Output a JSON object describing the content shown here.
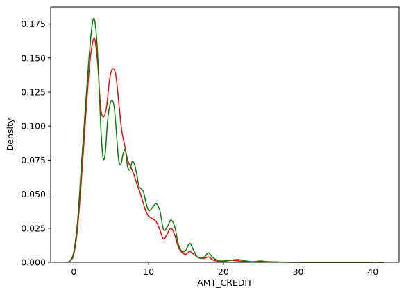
{
  "chart_data": {
    "type": "line",
    "title": "",
    "xlabel": "AMT_CREDIT",
    "ylabel": "Density",
    "xlim": [
      -3.1,
      43.5
    ],
    "ylim": [
      0,
      0.1875
    ],
    "x_ticks": [
      0,
      10,
      20,
      30,
      40
    ],
    "y_ticks": [
      0.0,
      0.025,
      0.05,
      0.075,
      0.1,
      0.125,
      0.15,
      0.175
    ],
    "x_tick_labels": [
      "0",
      "10",
      "20",
      "30",
      "40"
    ],
    "y_tick_labels": [
      "0.000",
      "0.025",
      "0.050",
      "0.075",
      "0.100",
      "0.125",
      "0.150",
      "0.175"
    ],
    "grid": false,
    "legend": "none",
    "series": [
      {
        "color": "#ff0000",
        "x": [
          -1.0,
          -0.5,
          0.0,
          0.5,
          1.0,
          1.5,
          2.0,
          2.4,
          2.8,
          3.2,
          3.6,
          4.0,
          4.4,
          4.8,
          5.2,
          5.6,
          6.0,
          6.4,
          6.8,
          7.2,
          7.6,
          8.0,
          8.4,
          8.8,
          9.2,
          9.6,
          10.0,
          10.5,
          11.0,
          11.5,
          12.0,
          12.5,
          13.0,
          13.5,
          14.0,
          14.5,
          15.0,
          15.5,
          16.0,
          16.5,
          17.0,
          17.5,
          18.0,
          18.5,
          19.0,
          19.5,
          20.0,
          21.0,
          22.0,
          23.0,
          24.0,
          25.0,
          26.0,
          28.0,
          30.0,
          35.0,
          41.5
        ],
        "values": [
          0.0,
          0.001,
          0.006,
          0.025,
          0.06,
          0.1,
          0.138,
          0.158,
          0.164,
          0.145,
          0.113,
          0.107,
          0.115,
          0.135,
          0.142,
          0.138,
          0.118,
          0.097,
          0.086,
          0.075,
          0.07,
          0.065,
          0.058,
          0.052,
          0.045,
          0.038,
          0.034,
          0.032,
          0.03,
          0.024,
          0.017,
          0.021,
          0.025,
          0.02,
          0.011,
          0.007,
          0.006,
          0.008,
          0.006,
          0.004,
          0.003,
          0.003,
          0.004,
          0.002,
          0.001,
          0.001,
          0.001,
          0.0015,
          0.001,
          0.0005,
          0.0003,
          0.0005,
          0.0002,
          0.0001,
          0.0,
          0.0,
          0.0
        ]
      },
      {
        "color": "#008000",
        "x": [
          -1.0,
          -0.5,
          0.0,
          0.5,
          1.0,
          1.5,
          2.0,
          2.4,
          2.7,
          3.0,
          3.3,
          3.6,
          3.9,
          4.2,
          4.5,
          4.8,
          5.1,
          5.4,
          5.7,
          6.0,
          6.3,
          6.6,
          6.9,
          7.2,
          7.5,
          7.8,
          8.1,
          8.4,
          8.7,
          9.0,
          9.3,
          9.6,
          10.0,
          10.5,
          11.0,
          11.5,
          12.0,
          12.5,
          13.0,
          13.5,
          14.0,
          14.5,
          15.0,
          15.5,
          16.0,
          16.5,
          17.0,
          17.5,
          18.0,
          18.5,
          19.0,
          19.5,
          20.0,
          20.5,
          21.0,
          22.0,
          23.0,
          24.0,
          25.0,
          26.0,
          28.0,
          30.0,
          35.0,
          41.5
        ],
        "values": [
          0.0,
          0.001,
          0.008,
          0.03,
          0.07,
          0.11,
          0.148,
          0.172,
          0.179,
          0.168,
          0.14,
          0.1,
          0.077,
          0.08,
          0.103,
          0.115,
          0.119,
          0.114,
          0.095,
          0.075,
          0.072,
          0.08,
          0.082,
          0.07,
          0.068,
          0.074,
          0.072,
          0.065,
          0.056,
          0.054,
          0.052,
          0.045,
          0.038,
          0.04,
          0.043,
          0.038,
          0.024,
          0.026,
          0.031,
          0.026,
          0.013,
          0.008,
          0.009,
          0.014,
          0.009,
          0.004,
          0.003,
          0.004,
          0.007,
          0.004,
          0.002,
          0.001,
          0.001,
          0.001,
          0.0015,
          0.002,
          0.001,
          0.0005,
          0.001,
          0.0005,
          0.0002,
          0.0,
          0.0,
          0.0
        ]
      }
    ]
  }
}
